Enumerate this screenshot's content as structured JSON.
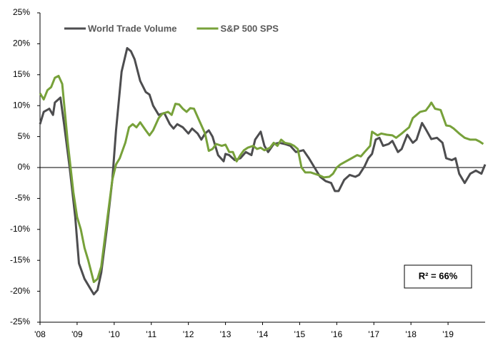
{
  "chart_data": {
    "type": "line",
    "series": [
      {
        "name": "World Trade Volume",
        "color": "#4d4d4f",
        "x": [
          2008.0,
          2008.1,
          2008.25,
          2008.35,
          2008.4,
          2008.55,
          2008.65,
          2008.8,
          2008.95,
          2009.05,
          2009.2,
          2009.35,
          2009.45,
          2009.55,
          2009.65,
          2009.8,
          2009.95,
          2010.05,
          2010.2,
          2010.35,
          2010.45,
          2010.55,
          2010.7,
          2010.85,
          2010.95,
          2011.05,
          2011.2,
          2011.35,
          2011.5,
          2011.6,
          2011.7,
          2011.85,
          2012.0,
          2012.1,
          2012.25,
          2012.35,
          2012.45,
          2012.55,
          2012.65,
          2012.8,
          2012.95,
          2013.0,
          2013.1,
          2013.25,
          2013.4,
          2013.55,
          2013.7,
          2013.8,
          2013.95,
          2014.05,
          2014.15,
          2014.3,
          2014.45,
          2014.6,
          2014.75,
          2014.9,
          2015.1,
          2015.25,
          2015.4,
          2015.55,
          2015.7,
          2015.85,
          2015.95,
          2016.05,
          2016.2,
          2016.35,
          2016.5,
          2016.6,
          2016.75,
          2016.85,
          2016.95,
          2017.05,
          2017.15,
          2017.25,
          2017.4,
          2017.5,
          2017.65,
          2017.75,
          2017.9,
          2018.05,
          2018.15,
          2018.3,
          2018.4,
          2018.55,
          2018.7,
          2018.85,
          2018.95,
          2019.1,
          2019.2,
          2019.3,
          2019.45,
          2019.6,
          2019.75,
          2019.9,
          2020.0
        ],
        "values": [
          7,
          9,
          9.5,
          8.5,
          10.5,
          11.3,
          7,
          0,
          -8,
          -15.5,
          -18,
          -19.5,
          -20.5,
          -19.8,
          -17,
          -10,
          -2,
          6,
          15.5,
          19.3,
          18.8,
          17.5,
          14,
          12.2,
          11.8,
          10,
          8.5,
          8.8,
          7,
          6.3,
          7,
          6.5,
          5.5,
          6.3,
          5.5,
          4.5,
          5.5,
          6,
          5,
          2,
          1,
          2.2,
          2,
          1.2,
          1.5,
          2.5,
          2,
          4.5,
          5.8,
          3.5,
          2.5,
          3.8,
          4,
          3.8,
          3.5,
          2.5,
          2.8,
          1.5,
          0,
          -1.5,
          -2.2,
          -2.5,
          -3.8,
          -3.8,
          -2,
          -1.2,
          -1.5,
          -1.2,
          0.2,
          1.5,
          2.2,
          4.5,
          4.8,
          3.5,
          3.8,
          4.3,
          2.5,
          3,
          5.3,
          4,
          4.5,
          7.2,
          6.2,
          4.6,
          4.8,
          4,
          1.5,
          1.2,
          1.5,
          -1,
          -2.5,
          -1,
          -0.5,
          -1,
          0.5
        ]
      },
      {
        "name": "S&P 500 SPS",
        "color": "#77a13a",
        "x": [
          2008.0,
          2008.1,
          2008.2,
          2008.3,
          2008.4,
          2008.5,
          2008.6,
          2008.75,
          2008.9,
          2009.0,
          2009.1,
          2009.2,
          2009.3,
          2009.45,
          2009.55,
          2009.65,
          2009.8,
          2009.95,
          2010.05,
          2010.15,
          2010.3,
          2010.4,
          2010.5,
          2010.6,
          2010.7,
          2010.85,
          2010.95,
          2011.05,
          2011.2,
          2011.3,
          2011.45,
          2011.55,
          2011.65,
          2011.75,
          2011.85,
          2011.95,
          2012.05,
          2012.15,
          2012.3,
          2012.45,
          2012.55,
          2012.65,
          2012.75,
          2012.9,
          2013.0,
          2013.1,
          2013.2,
          2013.3,
          2013.4,
          2013.5,
          2013.6,
          2013.75,
          2013.85,
          2013.95,
          2014.05,
          2014.2,
          2014.3,
          2014.4,
          2014.5,
          2014.6,
          2014.75,
          2014.85,
          2014.95,
          2015.05,
          2015.15,
          2015.3,
          2015.4,
          2015.55,
          2015.65,
          2015.8,
          2015.9,
          2016.0,
          2016.1,
          2016.25,
          2016.4,
          2016.55,
          2016.65,
          2016.75,
          2016.9,
          2016.95,
          2017.1,
          2017.2,
          2017.35,
          2017.5,
          2017.6,
          2017.75,
          2017.85,
          2017.95,
          2018.05,
          2018.15,
          2018.25,
          2018.4,
          2018.5,
          2018.55,
          2018.65,
          2018.8,
          2018.95,
          2019.05,
          2019.15,
          2019.3,
          2019.45,
          2019.6,
          2019.75,
          2019.85,
          2019.95
        ],
        "values": [
          12,
          11,
          12.5,
          13,
          14.5,
          14.8,
          13.5,
          4,
          -4,
          -8,
          -10,
          -13,
          -15,
          -18.5,
          -18,
          -16,
          -9,
          -2,
          0.5,
          1.5,
          4,
          6.5,
          7,
          6.5,
          7.3,
          6,
          5.2,
          6,
          8,
          8.7,
          9,
          8.5,
          10.3,
          10.2,
          9.5,
          9,
          9.6,
          9.5,
          7.5,
          5.5,
          2.7,
          3,
          3.8,
          3.5,
          3.7,
          2.5,
          2.5,
          1,
          2,
          2.8,
          3.2,
          3.5,
          3,
          3.2,
          2.8,
          3.2,
          4,
          3.5,
          4.5,
          4,
          3.8,
          3.5,
          3,
          0,
          -0.8,
          -0.8,
          -1,
          -1.3,
          -1.6,
          -1.5,
          -1,
          0,
          0.5,
          1,
          1.5,
          2,
          1.8,
          2.5,
          3.5,
          5.8,
          5.2,
          5.5,
          5.3,
          5.2,
          4.8,
          5.5,
          6,
          6.5,
          8,
          8.5,
          9,
          9.2,
          10,
          10.5,
          9.5,
          9.3,
          6.8,
          6.7,
          6.3,
          5.5,
          4.8,
          4.5,
          4.5,
          4.2,
          3.8
        ]
      }
    ],
    "xlim": [
      2008,
      2020
    ],
    "xticks": [
      {
        "value": 2008,
        "label": "'08"
      },
      {
        "value": 2009,
        "label": "'09"
      },
      {
        "value": 2010,
        "label": "'10"
      },
      {
        "value": 2011,
        "label": "'11"
      },
      {
        "value": 2012,
        "label": "'12"
      },
      {
        "value": 2013,
        "label": "'13"
      },
      {
        "value": 2014,
        "label": "'14"
      },
      {
        "value": 2015,
        "label": "'15"
      },
      {
        "value": 2016,
        "label": "'16"
      },
      {
        "value": 2017,
        "label": "'17"
      },
      {
        "value": 2018,
        "label": "'18"
      },
      {
        "value": 2019,
        "label": "'19"
      }
    ],
    "ylim": [
      -25,
      25
    ],
    "yticks": [
      {
        "value": -25,
        "label": "-25%"
      },
      {
        "value": -20,
        "label": "-20%"
      },
      {
        "value": -15,
        "label": "-15%"
      },
      {
        "value": -10,
        "label": "-10%"
      },
      {
        "value": -5,
        "label": "-5%"
      },
      {
        "value": 0,
        "label": "0%"
      },
      {
        "value": 5,
        "label": "5%"
      },
      {
        "value": 10,
        "label": "10%"
      },
      {
        "value": 15,
        "label": "15%"
      },
      {
        "value": 20,
        "label": "20%"
      },
      {
        "value": 25,
        "label": "25%"
      }
    ],
    "annotation": "R² = 66%",
    "legend": "top-left"
  }
}
